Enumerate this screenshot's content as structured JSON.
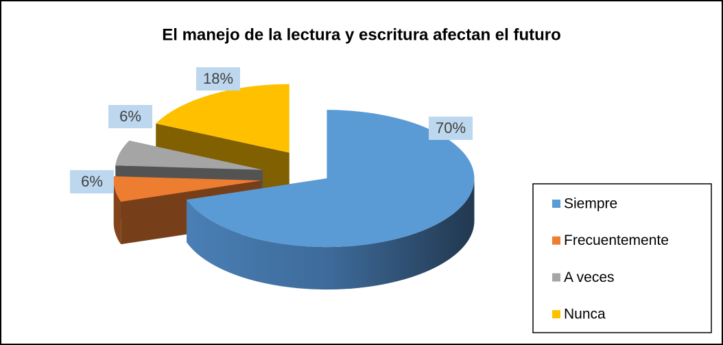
{
  "chart_data": {
    "type": "pie",
    "title": "El manejo de la lectura y escritura afectan el futuro",
    "categories": [
      "Siempre",
      "Frecuentemente",
      "A veces",
      "Nunca"
    ],
    "values": [
      70,
      6,
      6,
      18
    ],
    "value_labels": [
      "70%",
      "6%",
      "6%",
      "18%"
    ],
    "colors": [
      "#5b9bd5",
      "#ed7d31",
      "#a5a5a5",
      "#ffc000"
    ],
    "legend": "right"
  }
}
